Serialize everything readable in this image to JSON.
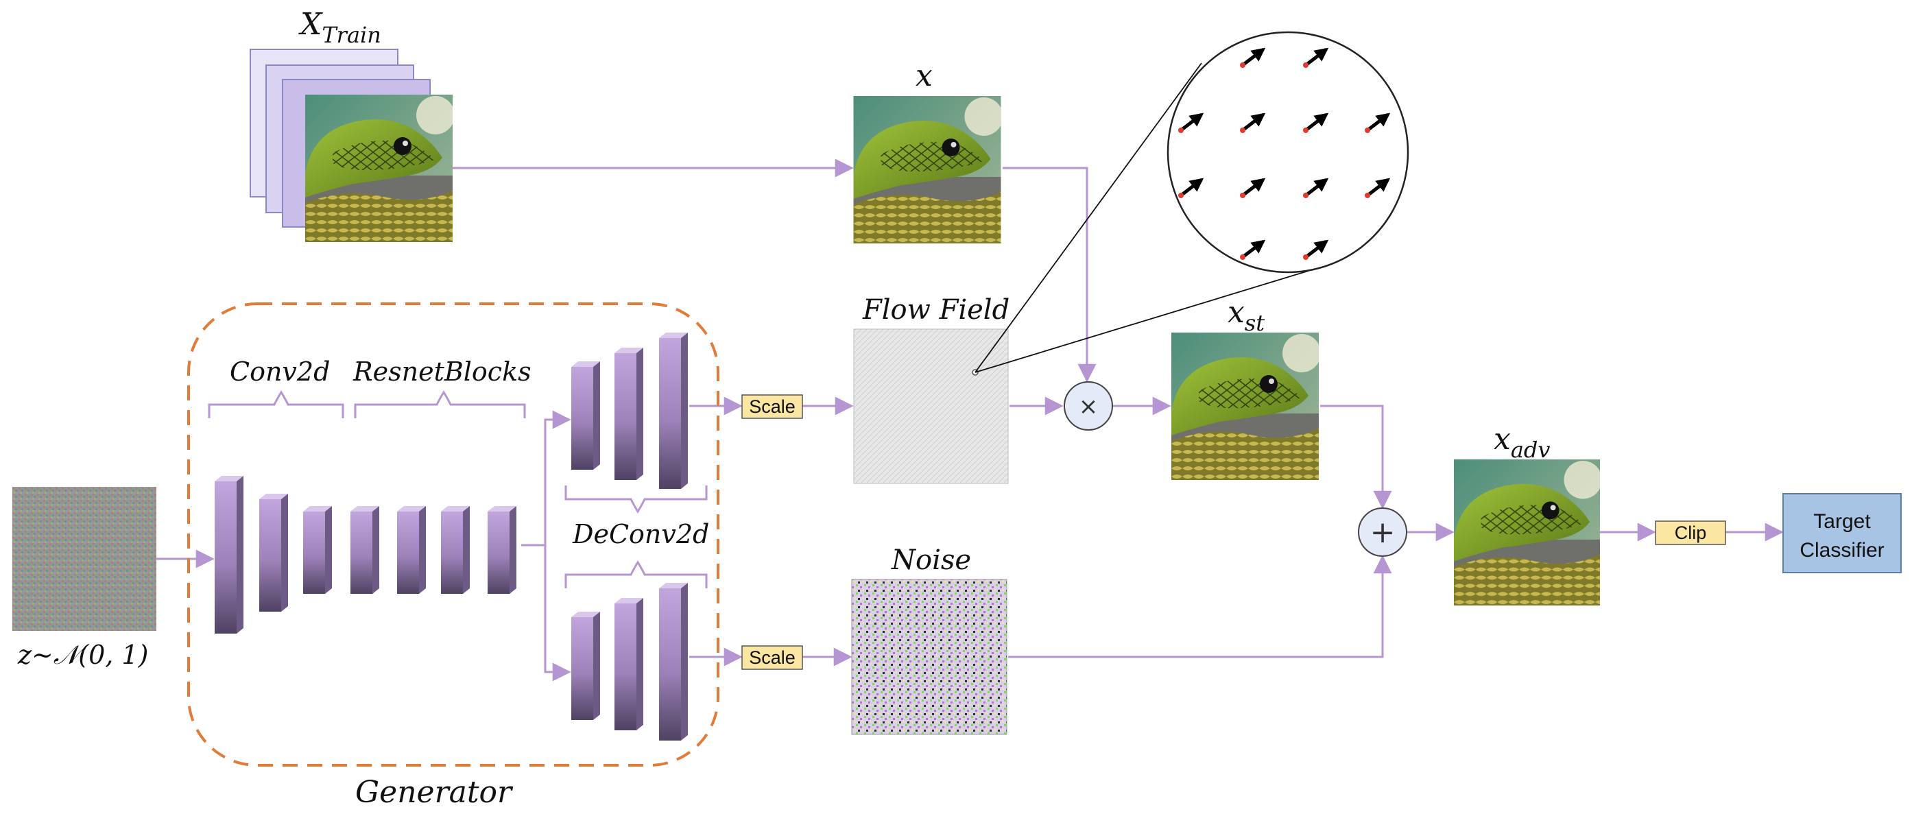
{
  "labels": {
    "x_train": "X",
    "x_train_sub": "Train",
    "x": "x",
    "flow_field": "Flow Field",
    "x_st": "x",
    "x_st_sub": "st",
    "x_adv": "x",
    "x_adv_sub": "adv",
    "noise": "Noise",
    "conv2d": "Conv2d",
    "resnet_blocks": "ResnetBlocks",
    "deconv2d": "DeConv2d",
    "generator": "Generator",
    "z_dist": "z~𝒩(0, 1)"
  },
  "boxes": {
    "scale_top": "Scale",
    "scale_bottom": "Scale",
    "clip": "Clip",
    "target_line1": "Target",
    "target_line2": "Classifier"
  },
  "operators": {
    "multiply": "×",
    "add": "+"
  },
  "colors": {
    "arrow": "#b596d2",
    "generator_border": "#e07b39",
    "layer_front": "#b79bd3",
    "scale_fill": "#fbe6a2",
    "target_fill": "#a8c4e4",
    "operator_fill": "#e4eaf7"
  },
  "icons": {
    "snake": "snake-photo",
    "noise": "noise-pattern",
    "flow": "flow-field-texture",
    "arrows": "flow-arrow-icon"
  }
}
